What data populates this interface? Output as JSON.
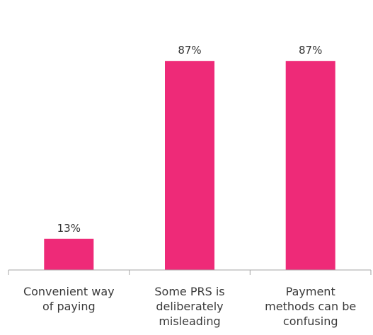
{
  "chart_data": {
    "type": "bar",
    "categories": [
      [
        "Convenient way",
        "of paying"
      ],
      [
        "Some PRS is",
        "deliberately",
        "misleading"
      ],
      [
        "Payment",
        "methods can be",
        "confusing"
      ]
    ],
    "values": [
      13,
      87,
      87
    ],
    "data_labels": [
      "13%",
      "87%",
      "87%"
    ],
    "title": "",
    "xlabel": "",
    "ylabel": "",
    "ylim": [
      0,
      100
    ],
    "grid": false,
    "legend": "none",
    "bar_color": "#ee2a78",
    "axis_color": "#a6a6a6"
  }
}
